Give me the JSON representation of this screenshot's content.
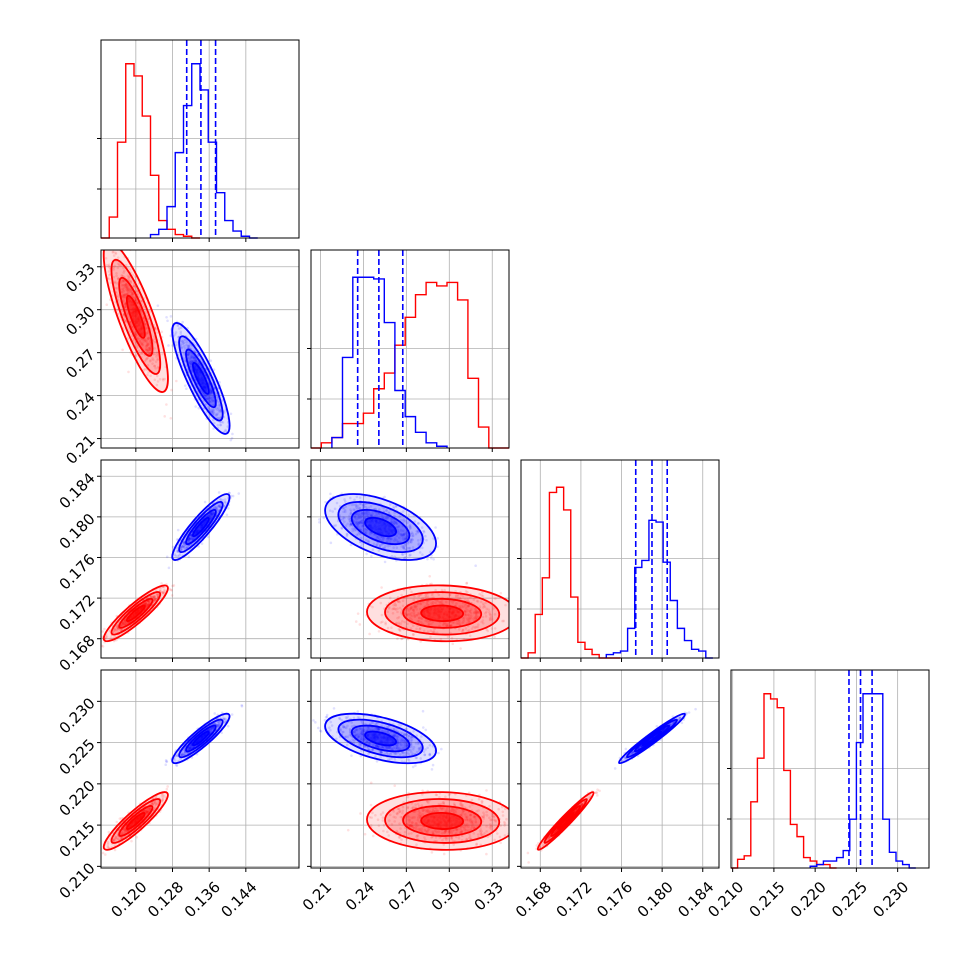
{
  "chart_data": {
    "type": "corner",
    "grid": true,
    "colors": {
      "red": "#ff0000",
      "blue": "#0000ff"
    },
    "parameters": [
      {
        "ticks": [
          0.12,
          0.128,
          0.136,
          0.144
        ],
        "tick_labels": [
          "0.120",
          "0.128",
          "0.136",
          "0.144"
        ],
        "range": [
          0.1124,
          0.1556
        ]
      },
      {
        "ticks": [
          0.21,
          0.24,
          0.27,
          0.3,
          0.33
        ],
        "tick_labels": [
          "0.21",
          "0.24",
          "0.27",
          "0.30",
          "0.33"
        ],
        "range": [
          0.2034,
          0.3417
        ]
      },
      {
        "ticks": [
          0.168,
          0.172,
          0.176,
          0.18,
          0.184
        ],
        "tick_labels": [
          "0.168",
          "0.172",
          "0.176",
          "0.180",
          "0.184"
        ],
        "range": [
          0.1661,
          0.1856
        ]
      },
      {
        "ticks": [
          0.21,
          0.215,
          0.22,
          0.225,
          0.23
        ],
        "tick_labels": [
          "0.210",
          "0.215",
          "0.220",
          "0.225",
          "0.230"
        ],
        "range": [
          0.2098,
          0.2338
        ]
      }
    ],
    "series": [
      {
        "color": "red",
        "means": [
          0.12,
          0.295,
          0.1705,
          0.2155
        ],
        "sigmas": [
          0.0028,
          0.021,
          0.0011,
          0.0014
        ],
        "quantiles": null
      },
      {
        "color": "blue",
        "means": [
          0.1342,
          0.252,
          0.179,
          0.2255
        ],
        "sigmas": [
          0.0025,
          0.0155,
          0.0013,
          0.0012
        ],
        "quantiles": [
          [
            0.1311,
            0.1342,
            0.1374
          ],
          [
            0.236,
            0.2508,
            0.2675
          ],
          [
            0.1774,
            0.179,
            0.1805
          ],
          [
            0.2241,
            0.2255,
            0.2269
          ]
        ]
      }
    ],
    "correlations": {
      "red": {
        "0-1": -0.82,
        "0-2": 0.9,
        "0-3": 0.9,
        "1-2": -0.05,
        "1-3": -0.05,
        "2-3": 0.97
      },
      "blue": {
        "0-1": -0.85,
        "0-2": 0.9,
        "0-3": 0.9,
        "1-2": -0.5,
        "1-3": -0.5,
        "2-3": 0.97
      }
    },
    "histograms": {
      "red": [
        {
          "edges": [
            0.1124,
            0.1142,
            0.116,
            0.1178,
            0.1196,
            0.1214,
            0.1232,
            0.125,
            0.1268,
            0.1286,
            0.1304,
            0.1322,
            0.134
          ],
          "rel_heights": [
            0.0,
            0.12,
            0.55,
            1.0,
            0.93,
            0.7,
            0.36,
            0.1,
            0.05,
            0.02,
            0.01,
            0.0
          ]
        },
        {
          "edges": [
            0.2034,
            0.2106,
            0.218,
            0.2254,
            0.2326,
            0.24,
            0.2472,
            0.2546,
            0.262,
            0.2692,
            0.2764,
            0.2838,
            0.2912,
            0.2984,
            0.3058,
            0.313,
            0.3204,
            0.3276,
            0.335,
            0.3417
          ],
          "rel_heights": [
            0.0,
            0.03,
            0.06,
            0.14,
            0.14,
            0.2,
            0.34,
            0.43,
            0.59,
            0.75,
            0.88,
            0.95,
            0.93,
            0.95,
            0.85,
            0.4,
            0.12,
            0.0,
            0.0
          ]
        },
        {
          "edges": [
            0.1661,
            0.1668,
            0.1675,
            0.1682,
            0.1689,
            0.1696,
            0.1703,
            0.171,
            0.1717,
            0.1724,
            0.1731,
            0.1738,
            0.1745,
            0.1752,
            0.1759
          ],
          "rel_heights": [
            0.0,
            0.03,
            0.25,
            0.46,
            0.95,
            0.98,
            0.85,
            0.35,
            0.09,
            0.05,
            0.02,
            0.0,
            0.0,
            0.0
          ]
        },
        {
          "edges": [
            0.2098,
            0.2106,
            0.2114,
            0.2122,
            0.213,
            0.2138,
            0.2146,
            0.2154,
            0.2162,
            0.217,
            0.2178,
            0.2186,
            0.2194,
            0.2202,
            0.221,
            0.2218,
            0.2226
          ],
          "rel_heights": [
            0.0,
            0.05,
            0.07,
            0.38,
            0.63,
            1.0,
            0.97,
            0.92,
            0.56,
            0.25,
            0.18,
            0.06,
            0.04,
            0.02,
            0.02,
            0.0
          ]
        }
      ],
      "blue": [
        {
          "edges": [
            0.1232,
            0.125,
            0.1268,
            0.1286,
            0.1304,
            0.1322,
            0.134,
            0.1358,
            0.1376,
            0.1394,
            0.1412,
            0.143,
            0.1448,
            0.1466
          ],
          "rel_heights": [
            0.02,
            0.05,
            0.18,
            0.49,
            0.76,
            1.0,
            0.85,
            0.55,
            0.26,
            0.1,
            0.04,
            0.01,
            0.0
          ]
        },
        {
          "edges": [
            0.218,
            0.2254,
            0.2326,
            0.24,
            0.2472,
            0.2546,
            0.262,
            0.2692,
            0.2764,
            0.2838,
            0.2912,
            0.2984
          ],
          "rel_heights": [
            0.06,
            0.52,
            0.98,
            0.98,
            0.97,
            0.72,
            0.33,
            0.18,
            0.09,
            0.03,
            0.01
          ]
        },
        {
          "edges": [
            0.1745,
            0.1752,
            0.1759,
            0.1766,
            0.1773,
            0.178,
            0.1787,
            0.1794,
            0.1801,
            0.1808,
            0.1815,
            0.1822,
            0.1829,
            0.1836,
            0.1843,
            0.185
          ],
          "rel_heights": [
            0.02,
            0.03,
            0.04,
            0.17,
            0.52,
            0.56,
            0.79,
            0.78,
            0.55,
            0.33,
            0.17,
            0.1,
            0.05,
            0.04,
            0.0
          ]
        },
        {
          "edges": [
            0.2194,
            0.2202,
            0.221,
            0.2218,
            0.2226,
            0.2234,
            0.2242,
            0.225,
            0.2258,
            0.2266,
            0.2274,
            0.2282,
            0.229,
            0.2298,
            0.2306,
            0.2314,
            0.2322
          ],
          "rel_heights": [
            0.01,
            0.02,
            0.04,
            0.04,
            0.06,
            0.1,
            0.28,
            0.72,
            1.0,
            1.0,
            1.0,
            0.28,
            0.09,
            0.04,
            0.02,
            0.0
          ]
        }
      ]
    }
  }
}
